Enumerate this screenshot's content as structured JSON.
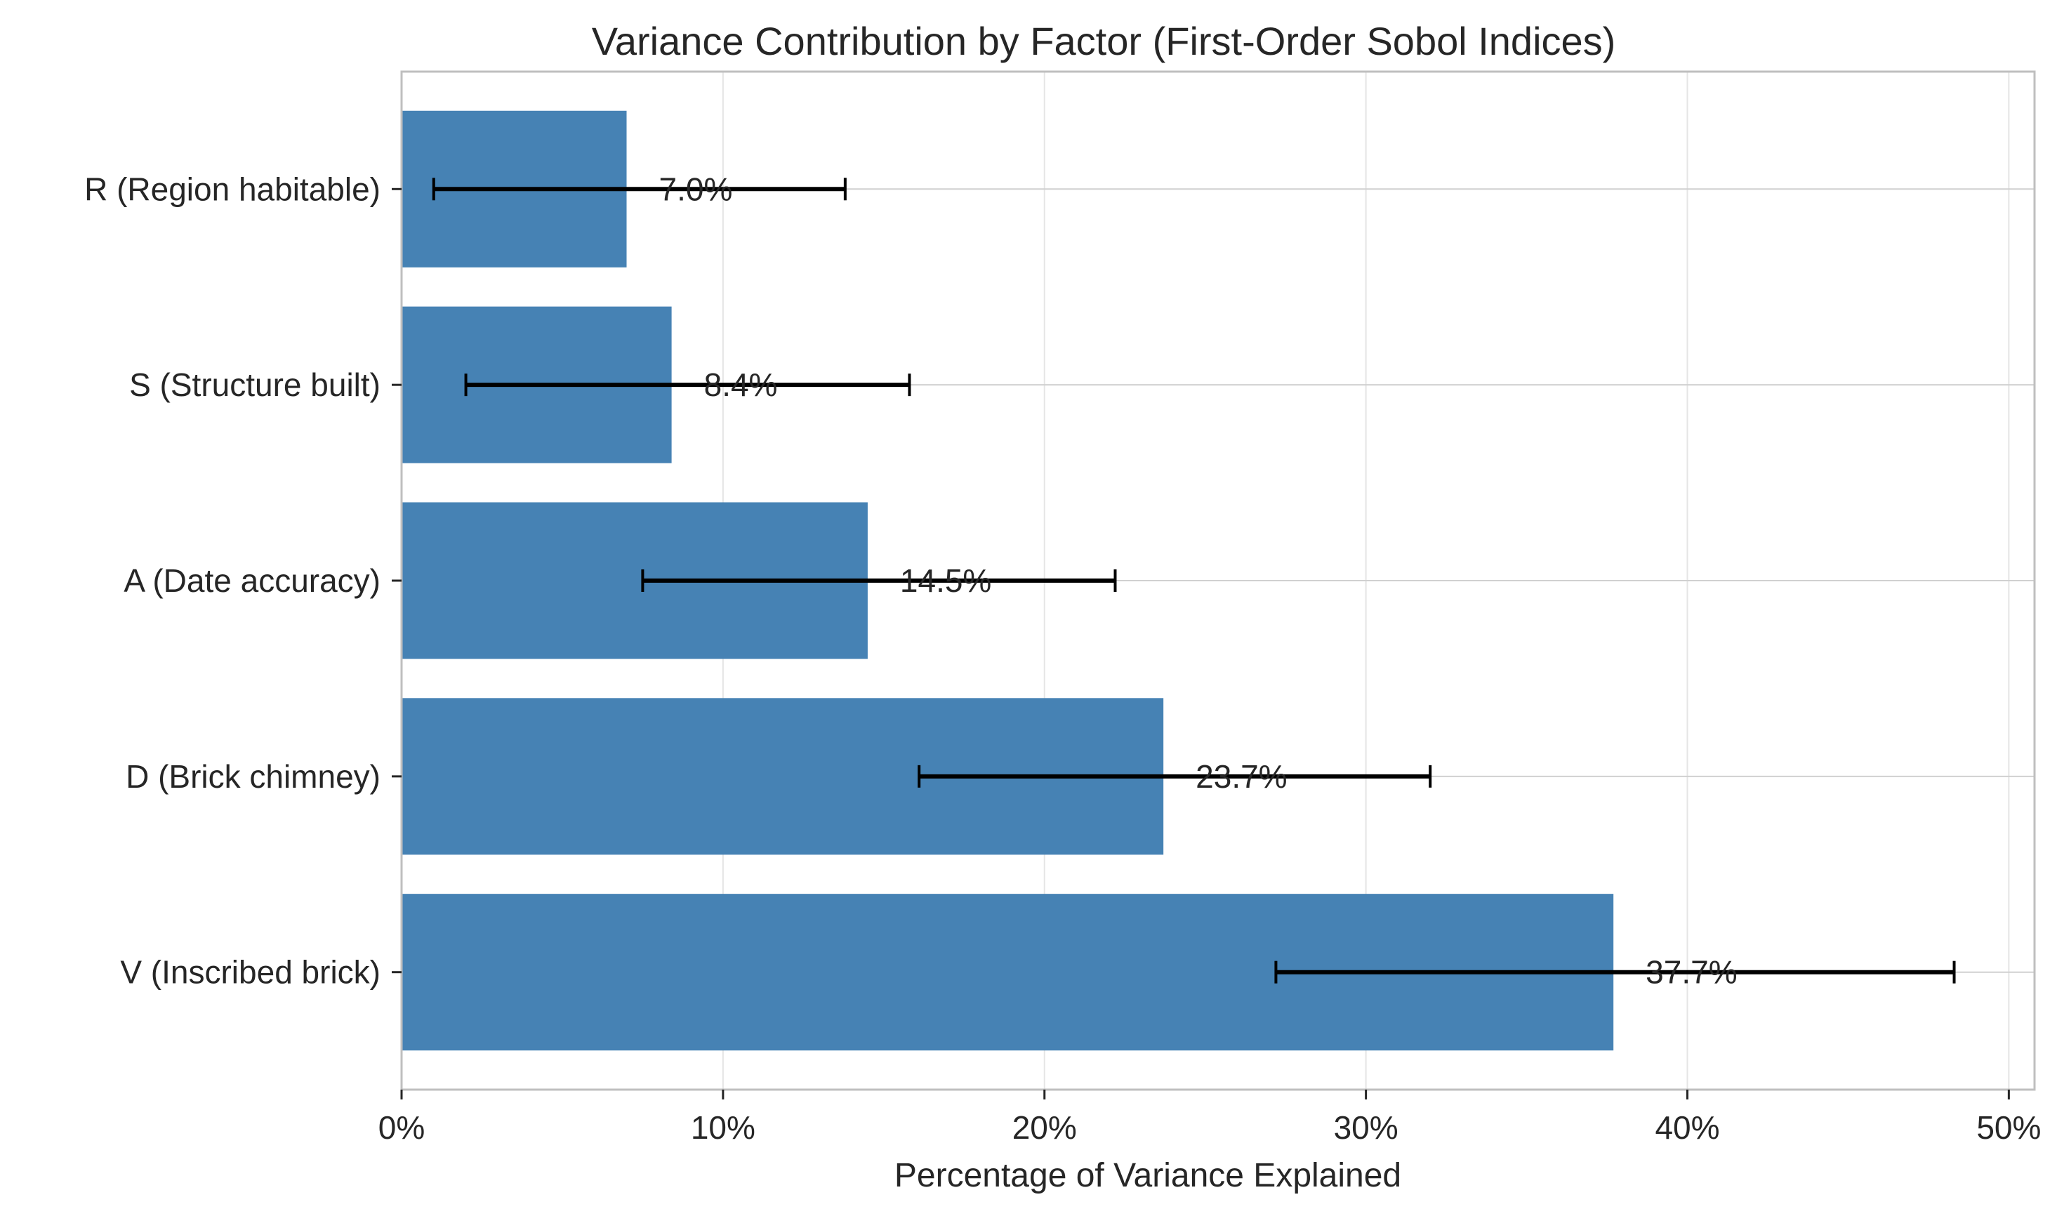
{
  "chart_data": {
    "type": "bar",
    "orientation": "horizontal",
    "title": "Variance Contribution by Factor (First-Order Sobol Indices)",
    "xlabel": "Percentage of Variance Explained",
    "ylabel": "",
    "xlim": [
      0,
      50.8
    ],
    "xticks": [
      0,
      10,
      20,
      30,
      40,
      50
    ],
    "xtick_labels": [
      "0%",
      "10%",
      "20%",
      "30%",
      "40%",
      "50%"
    ],
    "categories": [
      "V (Inscribed brick)",
      "D (Brick chimney)",
      "A (Date accuracy)",
      "S (Structure built)",
      "R (Region habitable)"
    ],
    "values": [
      37.7,
      23.7,
      14.5,
      8.4,
      7.0
    ],
    "error_low": [
      27.2,
      16.1,
      7.5,
      2.0,
      1.0
    ],
    "error_high": [
      48.3,
      32.0,
      22.2,
      15.8,
      13.8
    ],
    "data_labels": [
      "37.7%",
      "23.7%",
      "14.5%",
      "8.4%",
      "7.0%"
    ],
    "grid": true,
    "colors": {
      "bar": "#4682b4",
      "error": "#000000",
      "grid": "#e5e5e5",
      "axis": "#bfbfbf",
      "text": "#262626"
    }
  }
}
